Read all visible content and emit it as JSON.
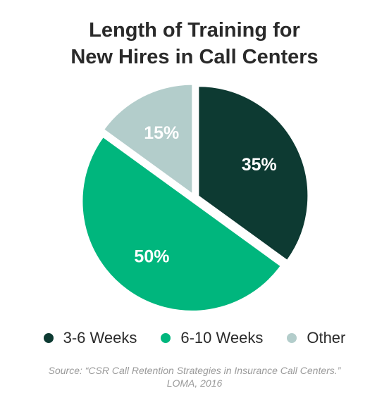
{
  "chart_data": {
    "type": "pie",
    "title_lines": [
      "Length of Training for",
      "New Hires in Call Centers"
    ],
    "slices": [
      {
        "label": "3-6 Weeks",
        "value": 35,
        "display": "35%",
        "color": "#0d3a32",
        "text_color": "#ffffff"
      },
      {
        "label": "6-10 Weeks",
        "value": 50,
        "display": "50%",
        "color": "#00b67d",
        "text_color": "#ffffff"
      },
      {
        "label": "Other",
        "value": 15,
        "display": "15%",
        "color": "#b3cdcb",
        "text_color": "#ffffff"
      }
    ],
    "legend_position": "bottom",
    "source_lines": [
      "Source: “CSR Call Retention Strategies in Insurance Call Centers.”",
      "LOMA, 2016"
    ]
  }
}
